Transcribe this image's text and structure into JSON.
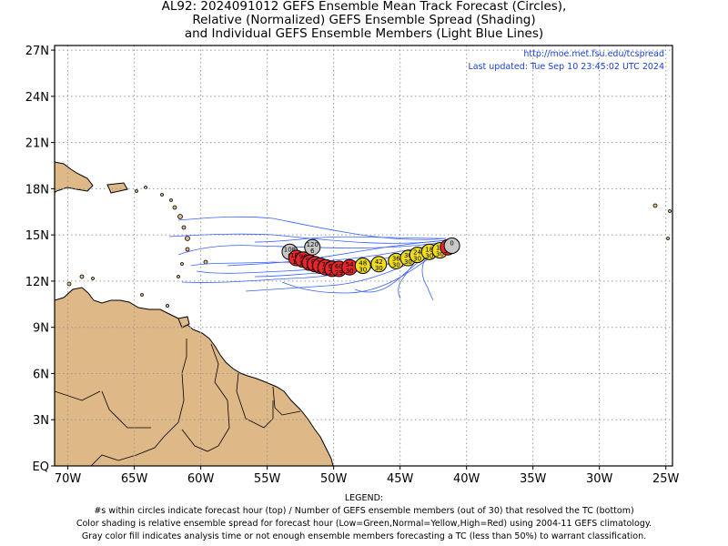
{
  "title": {
    "line1": "AL92: 2024091012 GEFS Ensemble Mean Track Forecast (Circles),",
    "line2": "Relative (Normalized) GEFS Ensemble Spread (Shading)",
    "line3": "and Individual GEFS Ensemble Members (Light Blue Lines)"
  },
  "url": "http://moe.met.fsu.edu/tcspread",
  "last_updated": "Last updated: Tue Sep 10 23:45:02 UTC 2024",
  "axes": {
    "lon_range": [
      -71,
      -24.5
    ],
    "lat_range": [
      0,
      27.3
    ],
    "lon_ticks": [
      "70W",
      "65W",
      "60W",
      "55W",
      "50W",
      "45W",
      "40W",
      "35W",
      "30W",
      "25W"
    ],
    "lon_tick_values": [
      -70,
      -65,
      -60,
      -55,
      -50,
      -45,
      -40,
      -35,
      -30,
      -25
    ],
    "lat_ticks": [
      "EQ",
      "3N",
      "6N",
      "9N",
      "12N",
      "15N",
      "18N",
      "21N",
      "24N",
      "27N"
    ],
    "lat_tick_values": [
      0,
      3,
      6,
      9,
      12,
      15,
      18,
      21,
      24,
      27
    ],
    "grid": "dotted"
  },
  "colors": {
    "land": "#deb887",
    "ensemble_lines": "#3a62ff",
    "high_spread": "#e8262a",
    "normal_spread": "#f0dc1e",
    "low_spread": "#2ecc40",
    "no_classification": "#c8c8c8"
  },
  "chart_data": {
    "type": "scatter",
    "title": "AL92: 2024091012 GEFS Ensemble Mean Track Forecast (Circles)",
    "points": [
      {
        "lon": -41.1,
        "lat": 14.3,
        "hour": "0",
        "members": "",
        "spread": "none"
      },
      {
        "lon": -41.4,
        "lat": 14.2,
        "hour": "6",
        "members": "30",
        "spread": "high"
      },
      {
        "lon": -42.0,
        "lat": 14.0,
        "hour": "12",
        "members": "30",
        "spread": "normal"
      },
      {
        "lon": -42.8,
        "lat": 13.9,
        "hour": "18",
        "members": "30",
        "spread": "normal"
      },
      {
        "lon": -43.7,
        "lat": 13.7,
        "hour": "24",
        "members": "30",
        "spread": "normal"
      },
      {
        "lon": -44.4,
        "lat": 13.5,
        "hour": "30",
        "members": "30",
        "spread": "normal"
      },
      {
        "lon": -45.3,
        "lat": 13.3,
        "hour": "36",
        "members": "30",
        "spread": "normal"
      },
      {
        "lon": -46.6,
        "lat": 13.1,
        "hour": "42",
        "members": "30",
        "spread": "normal"
      },
      {
        "lon": -47.8,
        "lat": 13.0,
        "hour": "48",
        "members": "30",
        "spread": "normal"
      },
      {
        "lon": -48.8,
        "lat": 12.9,
        "hour": "54",
        "members": "30",
        "spread": "high"
      },
      {
        "lon": -49.6,
        "lat": 12.8,
        "hour": "60",
        "members": "29",
        "spread": "high"
      },
      {
        "lon": -50.1,
        "lat": 12.8,
        "hour": "66",
        "members": "28",
        "spread": "high"
      },
      {
        "lon": -50.6,
        "lat": 12.9,
        "hour": "72",
        "members": "27",
        "spread": "high"
      },
      {
        "lon": -51.0,
        "lat": 13.0,
        "hour": "78",
        "members": "26",
        "spread": "high"
      },
      {
        "lon": -51.4,
        "lat": 13.1,
        "hour": "84",
        "members": "24",
        "spread": "high"
      },
      {
        "lon": -51.8,
        "lat": 13.2,
        "hour": "90",
        "members": "21",
        "spread": "high"
      },
      {
        "lon": -52.3,
        "lat": 13.4,
        "hour": "96",
        "members": "19",
        "spread": "high"
      },
      {
        "lon": -52.8,
        "lat": 13.5,
        "hour": "102",
        "members": "16",
        "spread": "high"
      },
      {
        "lon": -53.3,
        "lat": 13.9,
        "hour": "108",
        "members": "8",
        "spread": "none"
      },
      {
        "lon": -51.6,
        "lat": 14.2,
        "hour": "120",
        "members": "6",
        "spread": "none"
      }
    ]
  },
  "legend": {
    "heading": "LEGEND:",
    "line1": "#s within circles indicate forecast hour (top) / Number of GEFS ensemble members (out of 30) that resolved the TC (bottom)",
    "line2": "Color shading is relative ensemble spread for forecast hour (Low=Green,Normal=Yellow,High=Red) using 2004-11 GEFS climatology.",
    "line3": "Gray color fill indicates analysis time or not enough ensemble members forecasting a TC (less than 50%) to warrant classification."
  }
}
